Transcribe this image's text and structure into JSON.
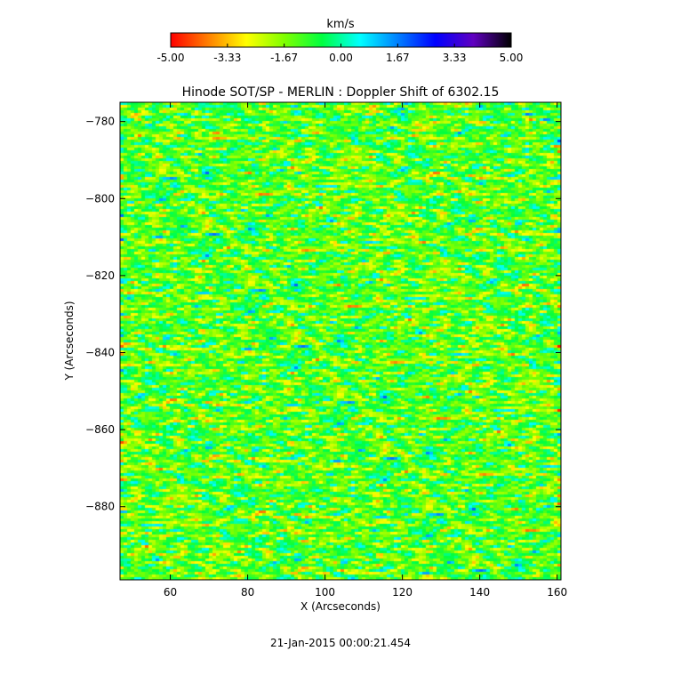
{
  "chart_data": {
    "type": "heatmap",
    "title": "Hinode SOT/SP - MERLIN : Doppler Shift of 6302.15",
    "xlabel": "X (Arcseconds)",
    "ylabel": "Y (Arcseconds)",
    "xlim": [
      47,
      161
    ],
    "ylim": [
      -899,
      -775
    ],
    "x_ticks": [
      60,
      80,
      100,
      120,
      140,
      160
    ],
    "y_ticks": [
      -780,
      -800,
      -820,
      -840,
      -860,
      -880
    ],
    "colorbar": {
      "label": "km/s",
      "range": [
        -5.0,
        5.0
      ],
      "ticks": [
        "-5.00",
        "-3.33",
        "-1.67",
        "0.00",
        "1.67",
        "3.33",
        "5.00"
      ],
      "colormap": [
        "#ff0000",
        "#ff8000",
        "#ffff00",
        "#80ff00",
        "#00ff40",
        "#00ffff",
        "#0080ff",
        "#0000ff",
        "#6000c0",
        "#000000"
      ]
    },
    "dominant_value_km_s": -1.2,
    "value_spread_km_s": 1.6
  },
  "timestamp": "21-Jan-2015 00:00:21.454"
}
